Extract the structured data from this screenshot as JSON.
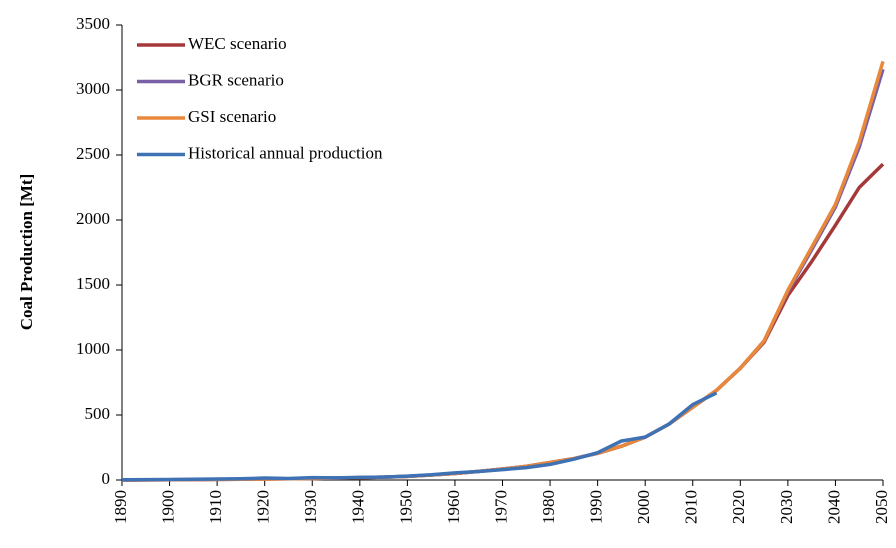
{
  "chart_data": {
    "type": "line",
    "y_label": "Coal Production [Mt]",
    "x": [
      1890,
      1895,
      1900,
      1905,
      1910,
      1915,
      1920,
      1925,
      1930,
      1935,
      1940,
      1945,
      1950,
      1955,
      1960,
      1965,
      1970,
      1975,
      1980,
      1985,
      1990,
      1995,
      2000,
      2005,
      2010,
      2015,
      2020,
      2025,
      2030,
      2035,
      2040,
      2045,
      2050
    ],
    "series": [
      {
        "name": "WEC scenario",
        "color": "#a5393a",
        "values": [
          0,
          1,
          2,
          3,
          5,
          6,
          8,
          10,
          12,
          15,
          18,
          22,
          28,
          38,
          50,
          66,
          85,
          105,
          135,
          165,
          205,
          260,
          330,
          430,
          560,
          690,
          860,
          1060,
          1420,
          1680,
          1960,
          2250,
          2430
        ]
      },
      {
        "name": "BGR scenario",
        "color": "#7b5fa6",
        "values": [
          0,
          1,
          2,
          3,
          5,
          6,
          8,
          10,
          12,
          15,
          18,
          22,
          28,
          38,
          50,
          66,
          85,
          105,
          135,
          165,
          205,
          260,
          330,
          430,
          560,
          690,
          860,
          1070,
          1450,
          1770,
          2100,
          2560,
          3160
        ]
      },
      {
        "name": "GSI scenario",
        "color": "#e8883a",
        "values": [
          0,
          1,
          2,
          3,
          5,
          6,
          8,
          10,
          12,
          15,
          18,
          22,
          28,
          38,
          50,
          66,
          85,
          105,
          135,
          165,
          205,
          260,
          330,
          430,
          560,
          690,
          860,
          1070,
          1460,
          1790,
          2120,
          2600,
          3220
        ]
      },
      {
        "name": "Historical annual production",
        "color": "#3f72b5",
        "values": [
          2,
          3,
          4,
          6,
          8,
          10,
          15,
          12,
          18,
          16,
          20,
          22,
          30,
          40,
          55,
          65,
          80,
          95,
          120,
          160,
          210,
          300,
          330,
          430,
          580,
          670,
          null,
          null,
          null,
          null,
          null,
          null,
          null
        ]
      }
    ],
    "xlim": [
      1890,
      2050
    ],
    "xticks": [
      1890,
      1900,
      1910,
      1920,
      1930,
      1940,
      1950,
      1960,
      1970,
      1980,
      1990,
      2000,
      2010,
      2020,
      2030,
      2040,
      2050
    ],
    "ylim": [
      0,
      3500
    ],
    "yticks": [
      0,
      500,
      1000,
      1500,
      2000,
      2500,
      3000,
      3500
    ],
    "grid": false,
    "legend": "top-left"
  }
}
